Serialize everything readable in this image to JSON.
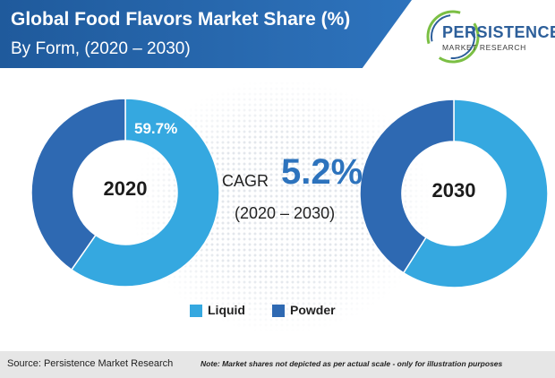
{
  "header": {
    "title": "Global Food Flavors Market Share (%)",
    "subtitle": "By Form, (2020 – 2030)"
  },
  "logo": {
    "main": "PERSISTENCE",
    "sub": "MARKET RESEARCH"
  },
  "cagr": {
    "label": "CAGR",
    "value": "5.2%",
    "period": "(2020 – 2030)"
  },
  "chart_data": [
    {
      "type": "pie",
      "center_label": "2020",
      "categories": [
        "Liquid",
        "Powder"
      ],
      "values": [
        59.7,
        40.3
      ],
      "data_labels": [
        "59.7%",
        ""
      ],
      "colors": [
        "#35a8e0",
        "#2e69b2"
      ],
      "donut": true
    },
    {
      "type": "pie",
      "center_label": "2030",
      "categories": [
        "Liquid",
        "Powder"
      ],
      "values": [
        59.0,
        41.0
      ],
      "data_labels": [
        "",
        ""
      ],
      "colors": [
        "#35a8e0",
        "#2e69b2"
      ],
      "donut": true
    }
  ],
  "legend": [
    {
      "label": "Liquid",
      "color": "#35a8e0"
    },
    {
      "label": "Powder",
      "color": "#2e69b2"
    }
  ],
  "footer": {
    "source": "Source: Persistence Market Research",
    "note": "Note: Market shares not depicted as per actual scale - only for illustration purposes"
  }
}
